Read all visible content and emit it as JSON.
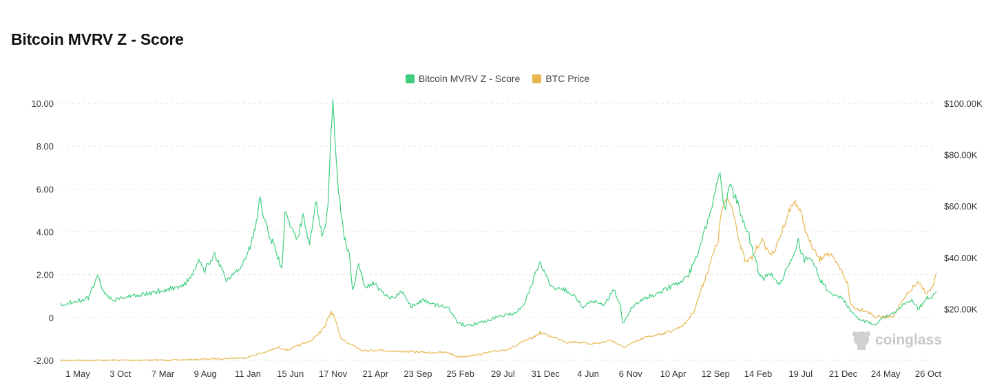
{
  "page": {
    "title": "Bitcoin MVRV Z - Score"
  },
  "watermark": {
    "text": "coinglass"
  },
  "colors": {
    "mvrv": "#3fcf7f",
    "price": "#e8b64e",
    "grid": "#e6e6e6"
  },
  "chart_data": {
    "type": "line",
    "title": "Bitcoin MVRV Z - Score",
    "legend_position": "top-center",
    "grid": true,
    "x_labels": [
      "1 May",
      "3 Oct",
      "7 Mar",
      "9 Aug",
      "11 Jan",
      "15 Jun",
      "17 Nov",
      "21 Apr",
      "23 Sep",
      "25 Feb",
      "29 Jul",
      "31 Dec",
      "4 Jun",
      "6 Nov",
      "10 Apr",
      "12 Sep",
      "14 Feb",
      "19 Jul",
      "21 Dec",
      "24 May",
      "26 Oct"
    ],
    "x_range": [
      2010.6,
      2024.85
    ],
    "y_left": {
      "ticks": [
        -2,
        0,
        2,
        4,
        6,
        8,
        10
      ],
      "tick_labels": [
        "-2.00",
        "0",
        "2.00",
        "4.00",
        "6.00",
        "8.00",
        "10.00"
      ],
      "range": [
        -2,
        10
      ]
    },
    "y_right": {
      "ticks": [
        20000,
        40000,
        60000,
        80000,
        100000
      ],
      "tick_labels": [
        "$20.00K",
        "$40.00K",
        "$60.00K",
        "$80.00K",
        "$100.00K"
      ],
      "range": [
        0,
        100000
      ]
    },
    "series": [
      {
        "name": "Bitcoin MVRV Z - Score",
        "axis": "left",
        "points": [
          [
            2010.6,
            0.6
          ],
          [
            2010.9,
            0.8
          ],
          [
            2011.05,
            0.9
          ],
          [
            2011.15,
            1.6
          ],
          [
            2011.2,
            2.0
          ],
          [
            2011.3,
            1.2
          ],
          [
            2011.45,
            0.8
          ],
          [
            2011.7,
            1.0
          ],
          [
            2012.0,
            1.1
          ],
          [
            2012.3,
            1.3
          ],
          [
            2012.6,
            1.5
          ],
          [
            2012.75,
            2.0
          ],
          [
            2012.85,
            2.6
          ],
          [
            2012.95,
            2.2
          ],
          [
            2013.1,
            3.0
          ],
          [
            2013.2,
            2.4
          ],
          [
            2013.3,
            1.7
          ],
          [
            2013.5,
            2.2
          ],
          [
            2013.65,
            3.0
          ],
          [
            2013.75,
            4.0
          ],
          [
            2013.85,
            5.6
          ],
          [
            2013.92,
            4.5
          ],
          [
            2014.0,
            3.8
          ],
          [
            2014.1,
            3.2
          ],
          [
            2014.2,
            2.2
          ],
          [
            2014.25,
            5.0
          ],
          [
            2014.35,
            4.2
          ],
          [
            2014.45,
            3.6
          ],
          [
            2014.55,
            4.8
          ],
          [
            2014.65,
            3.4
          ],
          [
            2014.75,
            5.5
          ],
          [
            2014.85,
            3.8
          ],
          [
            2014.95,
            5.0
          ],
          [
            2015.0,
            8.5
          ],
          [
            2015.03,
            10.0
          ],
          [
            2015.07,
            8.2
          ],
          [
            2015.12,
            6.0
          ],
          [
            2015.2,
            4.0
          ],
          [
            2015.3,
            2.8
          ],
          [
            2015.35,
            1.2
          ],
          [
            2015.45,
            2.5
          ],
          [
            2015.55,
            1.4
          ],
          [
            2015.7,
            1.6
          ],
          [
            2015.85,
            1.1
          ],
          [
            2016.0,
            0.9
          ],
          [
            2016.15,
            1.2
          ],
          [
            2016.3,
            0.5
          ],
          [
            2016.5,
            0.8
          ],
          [
            2016.7,
            0.6
          ],
          [
            2016.9,
            0.5
          ],
          [
            2017.05,
            -0.2
          ],
          [
            2017.2,
            -0.4
          ],
          [
            2017.5,
            -0.2
          ],
          [
            2017.8,
            0.1
          ],
          [
            2018.0,
            0.2
          ],
          [
            2018.15,
            0.7
          ],
          [
            2018.3,
            1.8
          ],
          [
            2018.4,
            2.6
          ],
          [
            2018.5,
            2.0
          ],
          [
            2018.6,
            1.4
          ],
          [
            2018.8,
            1.3
          ],
          [
            2018.95,
            1.0
          ],
          [
            2019.1,
            0.5
          ],
          [
            2019.3,
            0.8
          ],
          [
            2019.45,
            0.6
          ],
          [
            2019.6,
            1.3
          ],
          [
            2019.7,
            0.6
          ],
          [
            2019.75,
            -0.3
          ],
          [
            2019.9,
            0.5
          ],
          [
            2020.1,
            0.9
          ],
          [
            2020.3,
            1.1
          ],
          [
            2020.5,
            1.4
          ],
          [
            2020.65,
            1.6
          ],
          [
            2020.8,
            1.9
          ],
          [
            2020.95,
            2.8
          ],
          [
            2021.05,
            3.8
          ],
          [
            2021.15,
            4.8
          ],
          [
            2021.25,
            5.8
          ],
          [
            2021.33,
            7.0
          ],
          [
            2021.4,
            5.0
          ],
          [
            2021.5,
            6.2
          ],
          [
            2021.6,
            5.4
          ],
          [
            2021.7,
            4.6
          ],
          [
            2021.8,
            3.8
          ],
          [
            2021.9,
            2.7
          ],
          [
            2022.0,
            1.8
          ],
          [
            2022.15,
            2.0
          ],
          [
            2022.3,
            1.5
          ],
          [
            2022.45,
            2.5
          ],
          [
            2022.6,
            3.6
          ],
          [
            2022.7,
            2.6
          ],
          [
            2022.8,
            2.9
          ],
          [
            2022.95,
            1.8
          ],
          [
            2023.1,
            1.2
          ],
          [
            2023.25,
            1.0
          ],
          [
            2023.35,
            0.8
          ],
          [
            2023.45,
            0.3
          ],
          [
            2023.55,
            0.0
          ],
          [
            2023.7,
            -0.2
          ],
          [
            2023.85,
            -0.3
          ],
          [
            2024.0,
            0.0
          ],
          [
            2024.15,
            0.2
          ],
          [
            2024.3,
            0.6
          ],
          [
            2024.45,
            0.8
          ],
          [
            2024.55,
            0.4
          ],
          [
            2024.7,
            0.9
          ],
          [
            2024.8,
            1.0
          ],
          [
            2024.85,
            1.2
          ]
        ]
      },
      {
        "name": "BTC Price",
        "axis": "right",
        "points": [
          [
            2010.6,
            0
          ],
          [
            2012.5,
            100
          ],
          [
            2013.6,
            1000
          ],
          [
            2013.9,
            3000
          ],
          [
            2014.15,
            5000
          ],
          [
            2014.3,
            4000
          ],
          [
            2014.5,
            6000
          ],
          [
            2014.7,
            8000
          ],
          [
            2014.9,
            13000
          ],
          [
            2015.0,
            19000
          ],
          [
            2015.05,
            17000
          ],
          [
            2015.15,
            9000
          ],
          [
            2015.3,
            6500
          ],
          [
            2015.5,
            4000
          ],
          [
            2015.65,
            3800
          ],
          [
            2015.8,
            4000
          ],
          [
            2016.0,
            3500
          ],
          [
            2016.3,
            3400
          ],
          [
            2016.6,
            3000
          ],
          [
            2016.9,
            3100
          ],
          [
            2017.05,
            1400
          ],
          [
            2017.3,
            1800
          ],
          [
            2017.6,
            3200
          ],
          [
            2017.85,
            4200
          ],
          [
            2018.0,
            5500
          ],
          [
            2018.1,
            7000
          ],
          [
            2018.3,
            9000
          ],
          [
            2018.4,
            10800
          ],
          [
            2018.55,
            9500
          ],
          [
            2018.7,
            8500
          ],
          [
            2018.85,
            7000
          ],
          [
            2019.0,
            7200
          ],
          [
            2019.2,
            6500
          ],
          [
            2019.4,
            6800
          ],
          [
            2019.55,
            8000
          ],
          [
            2019.75,
            5000
          ],
          [
            2019.9,
            6500
          ],
          [
            2020.1,
            8800
          ],
          [
            2020.3,
            10000
          ],
          [
            2020.55,
            11500
          ],
          [
            2020.75,
            14000
          ],
          [
            2020.9,
            19000
          ],
          [
            2021.0,
            26000
          ],
          [
            2021.1,
            33000
          ],
          [
            2021.2,
            40000
          ],
          [
            2021.3,
            47000
          ],
          [
            2021.35,
            58000
          ],
          [
            2021.45,
            63000
          ],
          [
            2021.55,
            58000
          ],
          [
            2021.65,
            45000
          ],
          [
            2021.75,
            38000
          ],
          [
            2021.85,
            40000
          ],
          [
            2022.0,
            47000
          ],
          [
            2022.1,
            43000
          ],
          [
            2022.2,
            41000
          ],
          [
            2022.3,
            48000
          ],
          [
            2022.45,
            58000
          ],
          [
            2022.55,
            62000
          ],
          [
            2022.65,
            57000
          ],
          [
            2022.75,
            48000
          ],
          [
            2022.85,
            43000
          ],
          [
            2022.95,
            39000
          ],
          [
            2023.05,
            42000
          ],
          [
            2023.15,
            40000
          ],
          [
            2023.3,
            35000
          ],
          [
            2023.4,
            30000
          ],
          [
            2023.45,
            22000
          ],
          [
            2023.55,
            20000
          ],
          [
            2023.7,
            19500
          ],
          [
            2023.85,
            17000
          ],
          [
            2024.0,
            16800
          ],
          [
            2024.15,
            17500
          ],
          [
            2024.3,
            23000
          ],
          [
            2024.45,
            28000
          ],
          [
            2024.55,
            30000
          ],
          [
            2024.7,
            26000
          ],
          [
            2024.8,
            29000
          ],
          [
            2024.85,
            34000
          ]
        ]
      }
    ]
  }
}
